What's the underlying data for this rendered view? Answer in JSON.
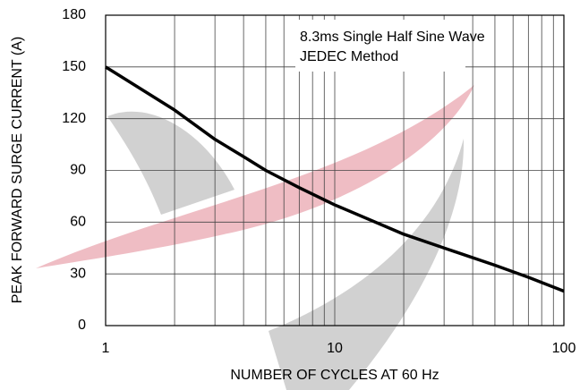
{
  "chart_data": {
    "type": "line",
    "xlabel": "NUMBER OF CYCLES AT 60 Hz",
    "ylabel": "PEAK FORWARD SURGE  CURRENT (A)",
    "annotations": [
      "8.3ms Single Half Sine Wave",
      "JEDEC Method"
    ],
    "x": [
      1,
      2,
      3,
      4,
      5,
      7,
      10,
      20,
      30,
      50,
      70,
      100
    ],
    "series": [
      {
        "color": "#000000",
        "values": [
          150,
          125,
          108,
          98,
          90,
          80,
          70,
          53,
          45,
          35,
          28,
          20
        ]
      }
    ],
    "xscale": "log",
    "xlim": [
      1,
      100
    ],
    "xticks": [
      1,
      10,
      100
    ],
    "xminor_grid": [
      2,
      3,
      4,
      5,
      6,
      7,
      8,
      9,
      20,
      30,
      40,
      50,
      60,
      70,
      80,
      90
    ],
    "ylim": [
      0,
      180
    ],
    "yticks": [
      0,
      30,
      60,
      90,
      120,
      150,
      180
    ],
    "grid": true
  }
}
